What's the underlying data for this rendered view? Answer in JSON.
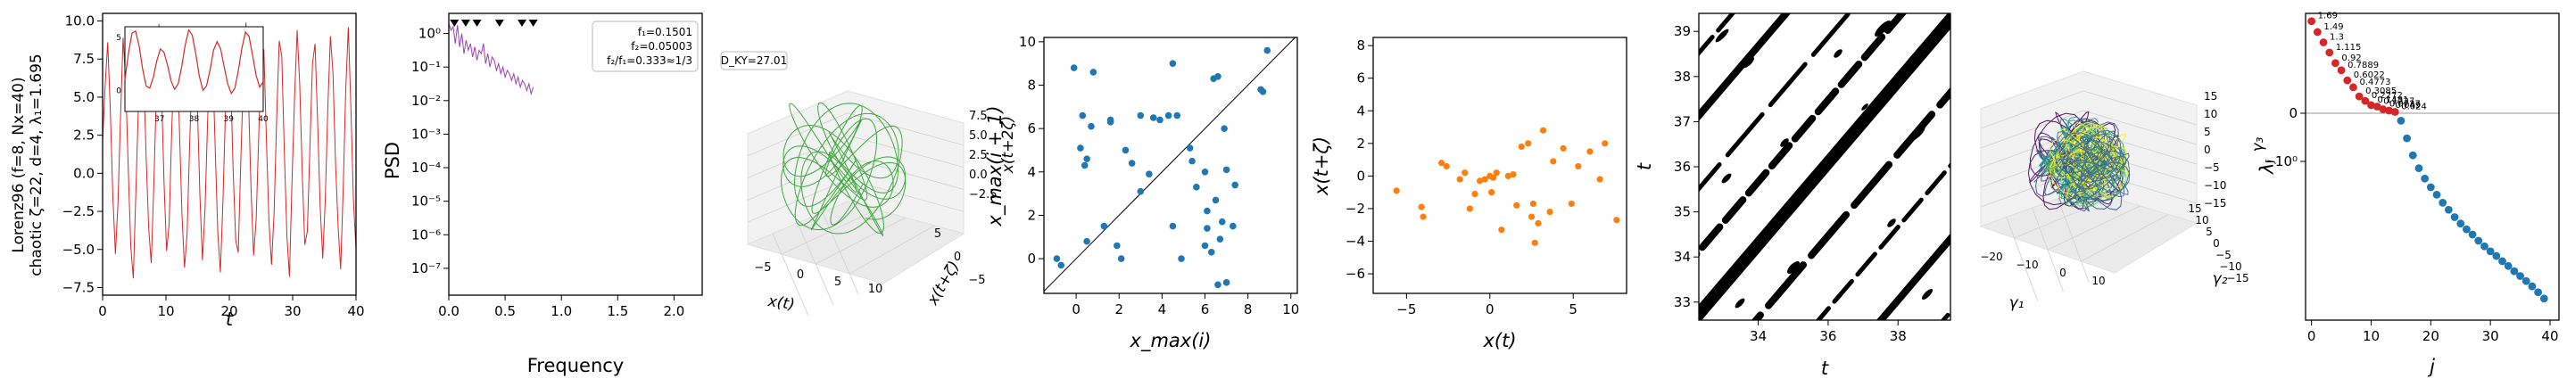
{
  "figure": {
    "ylabel_line1": "Lorenz96 (f=8, Nx=40)",
    "ylabel_line2": "chaotic ζ=22, d=4, λ₁=1.695"
  },
  "colors": {
    "red": "#d62728",
    "purple": "#9b3fb4",
    "green": "#2ca02c",
    "blue": "#1f77b4",
    "orange": "#ff7f0e",
    "inset_red": "#d62728"
  },
  "chart_data": [
    {
      "type": "line",
      "id": "timeseries",
      "xlabel": "t",
      "xlim": [
        0,
        40
      ],
      "ylim": [
        -8,
        10.5
      ],
      "xticks": [
        "0",
        "10",
        "20",
        "30",
        "40"
      ],
      "yticks": [
        "−7.5",
        "−5.0",
        "−2.5",
        "0.0",
        "2.5",
        "5.0",
        "7.5",
        "10.0"
      ],
      "ytick_values": [
        -7.5,
        -5,
        -2.5,
        0,
        2.5,
        5,
        7.5,
        10
      ],
      "series": [
        {
          "values": [
            2.1,
            5.8,
            8.6,
            4.2,
            -1.5,
            -5.3,
            -2.0,
            3.7,
            8.9,
            6.1,
            0.4,
            -4.8,
            -6.9,
            -1.2,
            4.5,
            9.3,
            7.0,
            1.1,
            -3.6,
            -5.9,
            -0.8,
            5.2,
            9.8,
            5.5,
            -0.6,
            -5.1,
            -3.3,
            2.8,
            7.6,
            8.8,
            3.0,
            -2.7,
            -6.2,
            -4.0,
            1.9,
            6.9,
            9.1,
            4.6,
            -1.4,
            -5.7,
            -2.4,
            3.3,
            8.2,
            7.3,
            1.6,
            -3.9,
            -6.5,
            -1.9,
            4.1,
            9.5,
            6.4,
            0.2,
            -4.4,
            -5.2,
            0.9,
            6.3,
            9.9,
            4.9,
            -1.1,
            -5.4,
            -3.0,
            2.5,
            7.9,
            8.1,
            2.2,
            -3.2,
            -6.0,
            -2.6,
            3.6,
            8.7,
            7.7,
            1.4,
            -4.1,
            -6.8,
            -0.5,
            5.0,
            9.4,
            5.9,
            0.0,
            -4.7,
            -3.8,
            1.8,
            7.2,
            8.5,
            3.4,
            -2.2,
            -5.6,
            -1.7,
            4.4,
            9.0,
            6.6,
            0.7,
            -3.5,
            -6.3,
            -1.0,
            5.6,
            9.6,
            4.3,
            -1.8,
            -5.0
          ]
        }
      ],
      "inset": {
        "xlim": [
          36,
          40
        ],
        "ylim": [
          -2,
          6
        ],
        "xticks": [
          "37",
          "38",
          "39",
          "40"
        ],
        "yticks": [
          "0",
          "5"
        ],
        "series": [
          {
            "values": [
              1.0,
              3.5,
              5.4,
              5.6,
              4.2,
              2.0,
              0.4,
              0.2,
              1.2,
              2.8,
              3.9,
              3.6,
              2.4,
              0.9,
              0.1,
              0.6,
              2.2,
              4.3,
              5.7,
              5.2,
              3.4,
              1.3,
              0.0,
              0.4,
              1.9,
              3.8,
              4.6,
              3.9,
              2.2,
              0.6,
              -0.3,
              0.2,
              1.9,
              4.0,
              5.5,
              5.1,
              3.3,
              1.4,
              0.3,
              0.8
            ]
          }
        ]
      }
    },
    {
      "type": "line",
      "id": "psd",
      "xlabel": "Frequency",
      "ylabel": "PSD",
      "xlim": [
        0,
        2.25
      ],
      "ylim_log10": [
        -7.8,
        0.6
      ],
      "xticks": [
        "0.0",
        "0.5",
        "1.0",
        "1.5",
        "2.0"
      ],
      "xtick_values": [
        0,
        0.5,
        1,
        1.5,
        2
      ],
      "yticks": [
        "10⁻⁷",
        "10⁻⁶",
        "10⁻⁵",
        "10⁻⁴",
        "10⁻³",
        "10⁻²",
        "10⁻¹",
        "10⁰"
      ],
      "ytick_log10": [
        -7,
        -6,
        -5,
        -4,
        -3,
        -2,
        -1,
        0
      ],
      "peak_markers_x": [
        0.05,
        0.15,
        0.25,
        0.45,
        0.65,
        0.75
      ],
      "annotation": [
        "f₁=0.1501",
        "f₂=0.05003",
        "f₂/f₁=0.333≈1/3"
      ],
      "series": [
        {
          "x_max": 0.75,
          "log10_values": [
            0.3,
            0.1,
            0.2,
            -0.3,
            0.25,
            -0.4,
            0.0,
            -0.6,
            -0.2,
            -0.5,
            -0.3,
            -0.7,
            -0.4,
            -0.8,
            -0.5,
            -0.6,
            -0.3,
            -0.9,
            -0.6,
            -1.0,
            -0.7,
            -0.8,
            -1.1,
            -0.9,
            -1.2,
            -1.0,
            -1.3,
            -1.1,
            -1.2,
            -1.4,
            -1.2,
            -1.5,
            -1.3,
            -1.6,
            -1.4,
            -1.5,
            -1.7,
            -1.5,
            -1.8,
            -1.6
          ]
        }
      ]
    },
    {
      "type": "line3d",
      "id": "embedding3d",
      "annotation": "D_KY=27.01",
      "xlabel": "x(t)",
      "ylabel": "x(t+ζ)",
      "zlabel": "x(t+2ζ)",
      "xticks": [
        "−5",
        "0",
        "5",
        "10"
      ],
      "yticks": [
        "−5",
        "0",
        "5"
      ],
      "zticks": [
        "−2.5",
        "0.0",
        "2.5",
        "5.0",
        "7.5"
      ]
    },
    {
      "type": "scatter",
      "id": "return_map",
      "xlabel": "x_max(i)",
      "ylabel": "x_max(i + 1)",
      "xlim": [
        -1.5,
        10.3
      ],
      "ylim": [
        -1.6,
        10.2
      ],
      "xticks": [
        "0",
        "2",
        "4",
        "6",
        "8",
        "10"
      ],
      "xtick_values": [
        0,
        2,
        4,
        6,
        8,
        10
      ],
      "yticks": [
        "0",
        "2",
        "4",
        "6",
        "8",
        "10"
      ],
      "ytick_values": [
        0,
        2,
        4,
        6,
        8,
        10
      ],
      "points": [
        [
          -0.9,
          0.0
        ],
        [
          -0.7,
          -0.3
        ],
        [
          -0.1,
          8.8
        ],
        [
          0.2,
          5.1
        ],
        [
          0.3,
          6.6
        ],
        [
          0.4,
          4.3
        ],
        [
          0.5,
          4.6
        ],
        [
          0.5,
          0.8
        ],
        [
          0.7,
          6.1
        ],
        [
          0.8,
          8.6
        ],
        [
          1.3,
          1.5
        ],
        [
          1.6,
          6.4
        ],
        [
          1.6,
          6.3
        ],
        [
          1.9,
          0.6
        ],
        [
          2.1,
          0.0
        ],
        [
          2.3,
          5.0
        ],
        [
          2.6,
          4.4
        ],
        [
          3.0,
          6.6
        ],
        [
          3.0,
          3.1
        ],
        [
          3.4,
          3.9
        ],
        [
          3.6,
          6.5
        ],
        [
          3.9,
          6.4
        ],
        [
          4.3,
          6.6
        ],
        [
          4.5,
          9.0
        ],
        [
          4.5,
          1.5
        ],
        [
          4.7,
          6.6
        ],
        [
          4.9,
          0.0
        ],
        [
          5.3,
          5.1
        ],
        [
          5.4,
          4.5
        ],
        [
          5.6,
          3.3
        ],
        [
          6.0,
          0.6
        ],
        [
          6.0,
          4.0
        ],
        [
          6.1,
          2.2
        ],
        [
          6.1,
          1.4
        ],
        [
          6.3,
          0.3
        ],
        [
          6.4,
          8.3
        ],
        [
          6.5,
          2.7
        ],
        [
          6.6,
          8.4
        ],
        [
          6.6,
          -1.2
        ],
        [
          6.7,
          0.9
        ],
        [
          6.8,
          1.7
        ],
        [
          6.9,
          6.0
        ],
        [
          7.0,
          -1.1
        ],
        [
          7.0,
          4.1
        ],
        [
          7.3,
          1.5
        ],
        [
          7.4,
          3.4
        ],
        [
          8.6,
          7.8
        ],
        [
          8.7,
          7.7
        ],
        [
          8.9,
          9.6
        ]
      ],
      "diagonal": true
    },
    {
      "type": "scatter",
      "id": "delay_scatter",
      "xlabel": "x(t)",
      "ylabel": "x(t+ζ)",
      "xlim": [
        -7,
        8.2
      ],
      "ylim": [
        -7.2,
        8.5
      ],
      "xticks": [
        "−5",
        "0",
        "5"
      ],
      "xtick_values": [
        -5,
        0,
        5
      ],
      "yticks": [
        "−6",
        "−4",
        "−2",
        "0",
        "2",
        "4",
        "6",
        "8"
      ],
      "ytick_values": [
        -6,
        -4,
        -2,
        0,
        2,
        4,
        6,
        8
      ],
      "points": [
        [
          -5.6,
          -0.9
        ],
        [
          -4.1,
          -1.9
        ],
        [
          -4.0,
          -2.5
        ],
        [
          -2.9,
          0.8
        ],
        [
          -2.6,
          0.6
        ],
        [
          -1.8,
          -0.2
        ],
        [
          -1.5,
          0.2
        ],
        [
          -1.2,
          -2.0
        ],
        [
          -0.9,
          -1.1
        ],
        [
          -0.6,
          -0.3
        ],
        [
          -0.3,
          -0.2
        ],
        [
          0.0,
          0.0
        ],
        [
          0.1,
          -1.0
        ],
        [
          0.2,
          -0.1
        ],
        [
          0.4,
          0.2
        ],
        [
          0.7,
          -3.3
        ],
        [
          1.1,
          0.0
        ],
        [
          1.4,
          0.1
        ],
        [
          1.6,
          -1.8
        ],
        [
          1.9,
          1.8
        ],
        [
          2.3,
          2.0
        ],
        [
          2.5,
          -2.5
        ],
        [
          2.6,
          -1.7
        ],
        [
          2.7,
          -4.1
        ],
        [
          2.9,
          -2.9
        ],
        [
          3.2,
          2.8
        ],
        [
          3.6,
          -2.2
        ],
        [
          3.8,
          0.9
        ],
        [
          4.4,
          1.7
        ],
        [
          4.9,
          -1.7
        ],
        [
          5.3,
          0.6
        ],
        [
          6.0,
          1.5
        ],
        [
          6.6,
          -0.2
        ],
        [
          6.9,
          2.0
        ],
        [
          7.6,
          -2.7
        ]
      ]
    },
    {
      "type": "heatmap",
      "id": "space_time",
      "xlabel": "t",
      "ylabel": "t",
      "xlim": [
        32.3,
        39.5
      ],
      "ylim": [
        32.6,
        39.4
      ],
      "xticks": [
        "34",
        "36",
        "38"
      ],
      "xtick_values": [
        34,
        36,
        38
      ],
      "yticks": [
        "33",
        "34",
        "35",
        "36",
        "37",
        "38",
        "39"
      ],
      "ytick_values": [
        33,
        34,
        35,
        36,
        37,
        38,
        39
      ]
    },
    {
      "type": "line3d",
      "id": "latent3d",
      "xlabel": "γ₁",
      "ylabel": "γ₂",
      "zlabel": "γ₃",
      "xticks": [
        "−20",
        "−10",
        "0",
        "10"
      ],
      "yticks": [
        "−15",
        "−10",
        "−5",
        "0",
        "5",
        "10",
        "15"
      ],
      "zticks": [
        "−15",
        "−10",
        "−5",
        "0",
        "5",
        "10",
        "15"
      ]
    },
    {
      "type": "scatter",
      "id": "lyapunov_spectrum",
      "xlabel": "j",
      "ylabel": "λⱼ",
      "xlim": [
        -1,
        41.5
      ],
      "xticks": [
        "0",
        "10",
        "20",
        "30",
        "40"
      ],
      "xtick_values": [
        0,
        10,
        20,
        30,
        40
      ],
      "yticks": [
        "0",
        "−10⁰"
      ],
      "symlog": true,
      "positive_labels": [
        "1.69",
        "1.49",
        "1.3",
        "1.115",
        "0.92",
        "0.7889",
        "0.6022",
        "0.4773",
        "0.3085",
        "0.2272",
        "0.1481",
        "0.1227",
        "0.0727",
        "0.049",
        "0.024"
      ],
      "values": [
        1.69,
        1.49,
        1.3,
        1.115,
        0.92,
        0.7889,
        0.6022,
        0.4773,
        0.3085,
        0.2272,
        0.1481,
        0.1227,
        0.0727,
        0.049,
        0.024,
        -0.05,
        -0.2,
        -0.4,
        -0.6,
        -0.8,
        -1.0,
        -1.2,
        -1.45,
        -1.7,
        -2.0,
        -2.3,
        -2.6,
        -2.9,
        -3.3,
        -3.7,
        -4.1,
        -4.5,
        -5.0,
        -5.5,
        -6.1,
        -6.7,
        -7.4,
        -8.2,
        -9.2,
        -10.4
      ]
    }
  ]
}
